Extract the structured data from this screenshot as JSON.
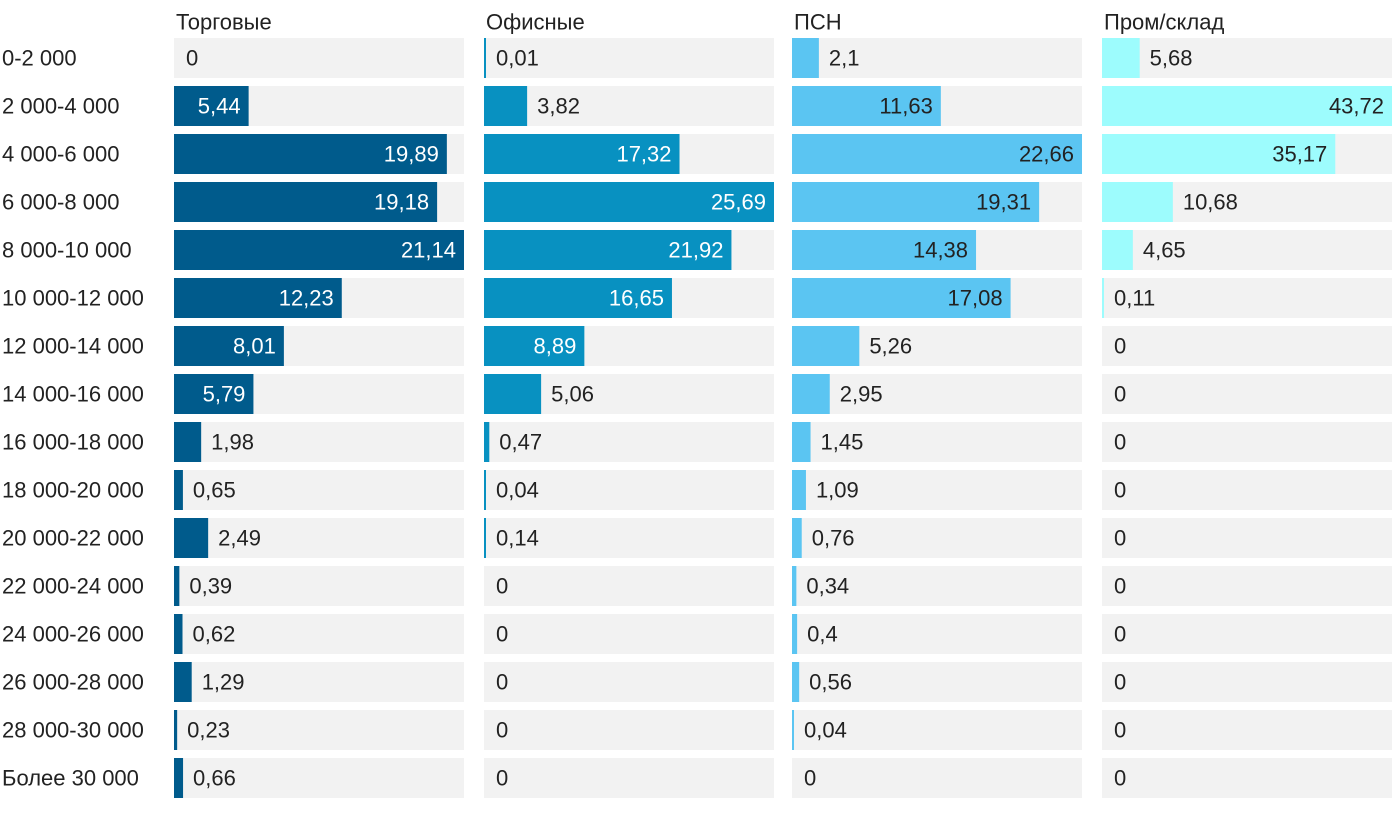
{
  "chart_data": {
    "type": "bar",
    "orientation": "horizontal",
    "categories": [
      "0-2 000",
      "2 000-4 000",
      "4 000-6 000",
      "6 000-8 000",
      "8 000-10 000",
      "10 000-12 000",
      "12 000-14 000",
      "14 000-16 000",
      "16 000-18 000",
      "18 000-20 000",
      "20 000-22 000",
      "22 000-24 000",
      "24 000-26 000",
      "26 000-28 000",
      "28 000-30 000",
      "Более 30 000"
    ],
    "series": [
      {
        "name": "Торговые",
        "color": "#005b8c",
        "xmax": 21.14,
        "values": [
          0,
          5.44,
          19.89,
          19.18,
          21.14,
          12.23,
          8.01,
          5.79,
          1.98,
          0.65,
          2.49,
          0.39,
          0.62,
          1.29,
          0.23,
          0.66
        ],
        "labels": [
          "0",
          "5,44",
          "19,89",
          "19,18",
          "21,14",
          "12,23",
          "8,01",
          "5,79",
          "1,98",
          "0,65",
          "2,49",
          "0,39",
          "0,62",
          "1,29",
          "0,23",
          "0,66"
        ]
      },
      {
        "name": "Офисные",
        "color": "#0891c1",
        "xmax": 25.69,
        "values": [
          0.01,
          3.82,
          17.32,
          25.69,
          21.92,
          16.65,
          8.89,
          5.06,
          0.47,
          0.04,
          0.14,
          0,
          0,
          0,
          0,
          0
        ],
        "labels": [
          "0,01",
          "3,82",
          "17,32",
          "25,69",
          "21,92",
          "16,65",
          "8,89",
          "5,06",
          "0,47",
          "0,04",
          "0,14",
          "0",
          "0",
          "0",
          "0",
          "0"
        ]
      },
      {
        "name": "ПСН",
        "color": "#5bc5f2",
        "xmax": 22.66,
        "values": [
          2.1,
          11.63,
          22.66,
          19.31,
          14.38,
          17.08,
          5.26,
          2.95,
          1.45,
          1.09,
          0.76,
          0.34,
          0.4,
          0.56,
          0.04,
          0
        ],
        "labels": [
          "2,1",
          "11,63",
          "22,66",
          "19,31",
          "14,38",
          "17,08",
          "5,26",
          "2,95",
          "1,45",
          "1,09",
          "0,76",
          "0,34",
          "0,4",
          "0,56",
          "0,04",
          "0"
        ]
      },
      {
        "name": "Пром/склад",
        "color": "#9dfcfd",
        "xmax": 43.72,
        "values": [
          5.68,
          43.72,
          35.17,
          10.68,
          4.65,
          0.11,
          0,
          0,
          0,
          0,
          0,
          0,
          0,
          0,
          0,
          0
        ],
        "labels": [
          "5,68",
          "43,72",
          "35,17",
          "10,68",
          "4,65",
          "0,11",
          "0",
          "0",
          "0",
          "0",
          "0",
          "0",
          "0",
          "0",
          "0",
          "0"
        ]
      }
    ],
    "colors": {
      "track": "#f2f2f2",
      "text_dark": "#222222",
      "text_on_bar": "#ffffff",
      "text_on_light_bar": "#222222"
    },
    "grid": false,
    "legend": "panel titles on top"
  }
}
